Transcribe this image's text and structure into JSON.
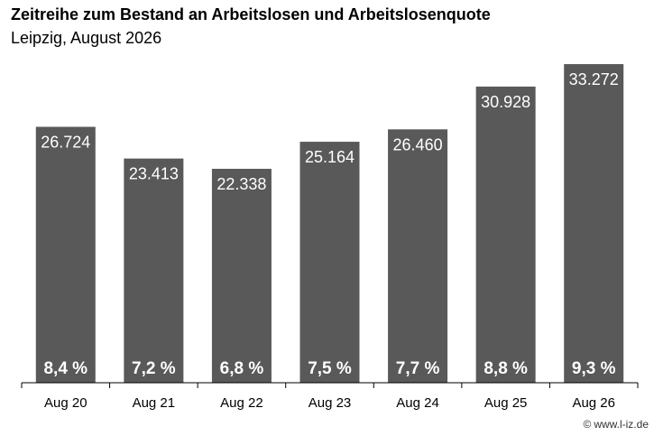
{
  "header": {
    "title": "Zeitreihe zum Bestand an Arbeitslosen und Arbeitslosenquote",
    "subtitle": "Leipzig, August 2026"
  },
  "credit": {
    "icon": "copyright-icon",
    "text": "www.l-iz.de"
  },
  "colors": {
    "bar": "#595959",
    "bar_text": "#ffffff",
    "axis": "#000000",
    "tick_label": "#000000"
  },
  "chart_data": {
    "type": "bar",
    "title": "Zeitreihe zum Bestand an Arbeitslosen und Arbeitslosenquote",
    "subtitle": "Leipzig, August 2026",
    "xlabel": "",
    "ylabel": "",
    "categories": [
      "Aug 20",
      "Aug 21",
      "Aug 22",
      "Aug 23",
      "Aug 24",
      "Aug 25",
      "Aug 26"
    ],
    "values": [
      26724,
      23413,
      22338,
      25164,
      26460,
      30928,
      33272
    ],
    "value_labels": [
      "26.724",
      "23.413",
      "22.338",
      "25.164",
      "26.460",
      "30.928",
      "33.272"
    ],
    "rates": [
      8.4,
      7.2,
      6.8,
      7.5,
      7.7,
      8.8,
      9.3
    ],
    "rate_labels": [
      "8,4 %",
      "7,2 %",
      "6,8 %",
      "7,5 %",
      "7,7 %",
      "8,8 %",
      "9,3 %"
    ],
    "ylim": [
      0,
      34500
    ],
    "grid": false,
    "legend": "none"
  }
}
